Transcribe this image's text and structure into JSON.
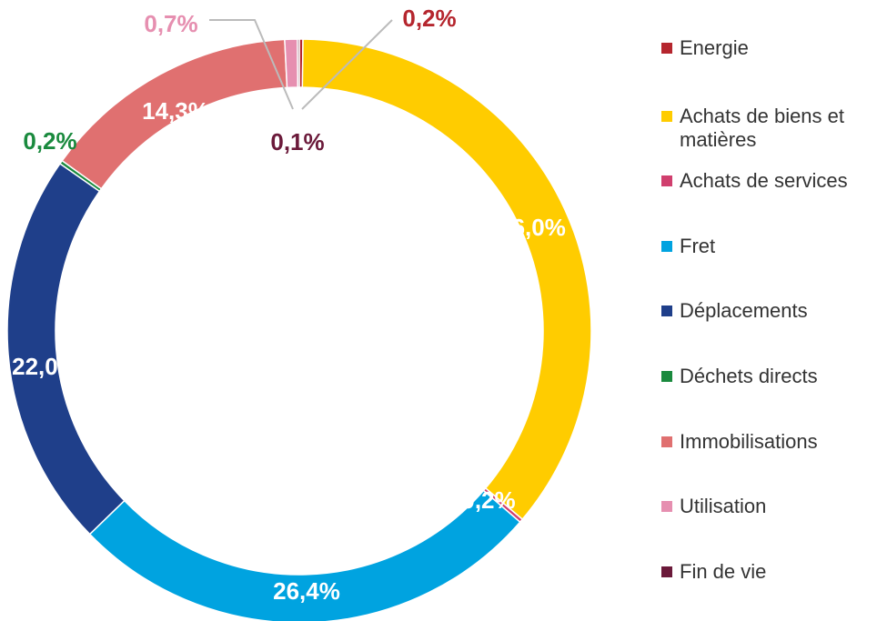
{
  "chart_data": {
    "type": "doughnut",
    "categories": [
      "Energie",
      "Achats de biens et matières",
      "Achats de services",
      "Fret",
      "Déplacements",
      "Déchets directs",
      "Immobilisations",
      "Utilisation",
      "Fin de vie"
    ],
    "values": [
      0.2,
      36.0,
      0.2,
      26.4,
      22.0,
      0.2,
      14.3,
      0.7,
      0.1
    ],
    "value_labels": [
      "0,2%",
      "36,0%",
      "0,2%",
      "26,4%",
      "22,0%",
      "0,2%",
      "14,3%",
      "0,7%",
      "0,1%"
    ],
    "colors": [
      "#b5262e",
      "#ffcc00",
      "#d03f6e",
      "#00a3e0",
      "#1f3f8a",
      "#1a8a3e",
      "#e07070",
      "#e68fb0",
      "#6b1a3a"
    ],
    "legend": "right"
  }
}
